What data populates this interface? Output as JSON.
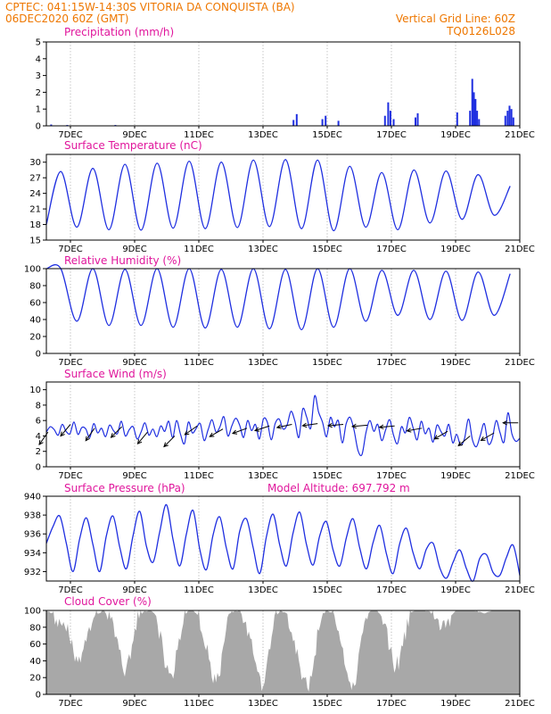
{
  "header": {
    "line1": "CPTEC:   041:15W-14:30S   VITORIA DA CONQUISTA (BA)",
    "line2_left": "06DEC2020 60Z (GMT)",
    "line2_right": "Vertical Grid Line: 60Z",
    "line3_right": "TQ0126L028"
  },
  "colors": {
    "header": "#ee7700",
    "title": "#e0169c",
    "series": "#1f2fe0",
    "cloud": "#a8a8a8",
    "wind_arrow": "#000000"
  },
  "chart_data": [
    {
      "type": "bar",
      "title": "Precipitation (mm/h)",
      "x_ticks": [
        "7DEC",
        "9DEC",
        "11DEC",
        "13DEC",
        "15DEC",
        "17DEC",
        "19DEC",
        "21DEC"
      ],
      "x_range_days": [
        6.25,
        21.0
      ],
      "ylim": [
        0,
        5
      ],
      "y_ticks": [
        "0",
        "1",
        "2",
        "3",
        "4",
        "5"
      ],
      "events": [
        {
          "day": 6.4,
          "value": 0.08
        },
        {
          "day": 6.9,
          "value": 0.05
        },
        {
          "day": 8.4,
          "value": 0.05
        },
        {
          "day": 13.95,
          "value": 0.35
        },
        {
          "day": 14.05,
          "value": 0.7
        },
        {
          "day": 14.85,
          "value": 0.4
        },
        {
          "day": 14.95,
          "value": 0.6
        },
        {
          "day": 15.35,
          "value": 0.3
        },
        {
          "day": 16.8,
          "value": 0.6
        },
        {
          "day": 16.9,
          "value": 1.4
        },
        {
          "day": 16.97,
          "value": 0.9
        },
        {
          "day": 17.07,
          "value": 0.4
        },
        {
          "day": 17.75,
          "value": 0.5
        },
        {
          "day": 17.82,
          "value": 0.75
        },
        {
          "day": 19.05,
          "value": 0.8
        },
        {
          "day": 19.45,
          "value": 0.9
        },
        {
          "day": 19.52,
          "value": 2.8
        },
        {
          "day": 19.57,
          "value": 2.0
        },
        {
          "day": 19.62,
          "value": 1.6
        },
        {
          "day": 19.67,
          "value": 0.9
        },
        {
          "day": 19.73,
          "value": 0.4
        },
        {
          "day": 20.55,
          "value": 0.6
        },
        {
          "day": 20.62,
          "value": 0.9
        },
        {
          "day": 20.68,
          "value": 1.2
        },
        {
          "day": 20.74,
          "value": 1.0
        },
        {
          "day": 20.8,
          "value": 0.5
        }
      ]
    },
    {
      "type": "line",
      "title": "Surface Temperature (nC)",
      "x_ticks": [
        "7DEC",
        "9DEC",
        "11DEC",
        "13DEC",
        "15DEC",
        "17DEC",
        "19DEC",
        "21DEC"
      ],
      "x_range_days": [
        6.25,
        21.0
      ],
      "ylim": [
        15,
        31.5
      ],
      "y_ticks": [
        "15",
        "18",
        "21",
        "24",
        "27",
        "30"
      ],
      "daily_max": [
        28.2,
        28.8,
        29.6,
        29.8,
        30.2,
        30.0,
        30.4,
        30.5,
        30.4,
        29.2,
        28.0,
        28.5,
        28.3,
        27.6,
        25.4,
        25.5
      ],
      "daily_min": [
        17.5,
        17.0,
        16.9,
        17.3,
        17.2,
        17.4,
        17.6,
        17.2,
        16.8,
        17.5,
        17.0,
        18.3,
        19.0,
        19.8,
        19.2,
        19.5
      ],
      "start_value": 18.0
    },
    {
      "type": "line",
      "title": "Relative Humidity (%)",
      "x_ticks": [
        "7DEC",
        "9DEC",
        "11DEC",
        "13DEC",
        "15DEC",
        "17DEC",
        "19DEC",
        "21DEC"
      ],
      "x_range_days": [
        6.25,
        21.0
      ],
      "ylim": [
        0,
        100
      ],
      "y_ticks": [
        "0",
        "20",
        "40",
        "60",
        "80",
        "100"
      ],
      "daily_max": [
        100,
        100,
        99,
        100,
        100,
        99,
        100,
        99,
        100,
        100,
        98,
        98,
        97,
        96,
        94,
        98
      ],
      "daily_min": [
        38,
        33,
        33,
        31,
        30,
        31,
        29,
        28,
        31,
        38,
        45,
        40,
        39,
        45,
        52,
        55
      ],
      "start_value": 100
    },
    {
      "type": "line",
      "title": "Surface Wind (m/s)",
      "x_ticks": [
        "7DEC",
        "9DEC",
        "11DEC",
        "13DEC",
        "15DEC",
        "17DEC",
        "19DEC",
        "21DEC"
      ],
      "x_range_days": [
        6.25,
        21.0
      ],
      "ylim": [
        0,
        11
      ],
      "y_ticks": [
        "0",
        "2",
        "4",
        "6",
        "8",
        "10"
      ],
      "speed": [
        4.5,
        5.2,
        4.8,
        4.1,
        5.5,
        4.6,
        4.3,
        5.8,
        4.2,
        5.1,
        4.9,
        3.8,
        5.6,
        4.4,
        5.0,
        3.9,
        5.4,
        4.7,
        4.3,
        5.9,
        4.0,
        4.8,
        5.2,
        3.6,
        4.5,
        5.7,
        4.1,
        4.9,
        3.9,
        5.3,
        4.6,
        5.9,
        3.8,
        6.0,
        4.2,
        3.0,
        5.8,
        4.4,
        5.0,
        5.6,
        3.4,
        4.8,
        6.1,
        4.5,
        5.2,
        6.5,
        4.0,
        5.3,
        6.3,
        5.4,
        3.8,
        6.0,
        4.7,
        5.5,
        3.6,
        6.2,
        5.8,
        3.5,
        5.6,
        6.2,
        4.9,
        5.4,
        7.2,
        5.9,
        3.8,
        7.5,
        6.4,
        5.0,
        9.2,
        7.1,
        5.8,
        3.9,
        6.4,
        5.2,
        6.0,
        3.1,
        5.6,
        6.4,
        4.7,
        2.1,
        1.6,
        4.4,
        6.0,
        4.6,
        5.5,
        3.4,
        4.8,
        6.1,
        4.1,
        3.0,
        5.2,
        4.4,
        6.4,
        5.0,
        3.5,
        5.9,
        4.3,
        5.0,
        3.2,
        5.4,
        4.6,
        4.0,
        5.5,
        3.1,
        4.2,
        2.8,
        3.7,
        6.2,
        3.5,
        2.6,
        4.1,
        5.6,
        3.0,
        3.6,
        6.0,
        4.4,
        3.2,
        7.0,
        4.3,
        3.3,
        3.7
      ],
      "arrows": [
        {
          "day": 6.3,
          "speed": 4.5,
          "dir_deg": 35
        },
        {
          "day": 7.0,
          "speed": 5.5,
          "dir_deg": 40
        },
        {
          "day": 7.75,
          "speed": 5.0,
          "dir_deg": 35
        },
        {
          "day": 8.6,
          "speed": 5.2,
          "dir_deg": 45
        },
        {
          "day": 9.4,
          "speed": 4.5,
          "dir_deg": 40
        },
        {
          "day": 10.25,
          "speed": 4.0,
          "dir_deg": 45
        },
        {
          "day": 10.95,
          "speed": 5.3,
          "dir_deg": 55
        },
        {
          "day": 11.75,
          "speed": 4.9,
          "dir_deg": 60
        },
        {
          "day": 12.5,
          "speed": 5.0,
          "dir_deg": 70
        },
        {
          "day": 13.2,
          "speed": 5.3,
          "dir_deg": 72
        },
        {
          "day": 13.9,
          "speed": 5.5,
          "dir_deg": 78
        },
        {
          "day": 14.7,
          "speed": 5.6,
          "dir_deg": 82
        },
        {
          "day": 15.5,
          "speed": 5.5,
          "dir_deg": 85
        },
        {
          "day": 16.25,
          "speed": 5.4,
          "dir_deg": 85
        },
        {
          "day": 17.1,
          "speed": 5.3,
          "dir_deg": 85
        },
        {
          "day": 17.95,
          "speed": 5.0,
          "dir_deg": 80
        },
        {
          "day": 18.75,
          "speed": 4.6,
          "dir_deg": 60
        },
        {
          "day": 19.45,
          "speed": 4.0,
          "dir_deg": 50
        },
        {
          "day": 20.2,
          "speed": 4.4,
          "dir_deg": 60
        },
        {
          "day": 20.95,
          "speed": 5.7,
          "dir_deg": 90
        }
      ]
    },
    {
      "type": "line",
      "title": "Surface Pressure (hPa)",
      "annotation": "Model Altitude: 697.792  m",
      "x_ticks": [
        "7DEC",
        "9DEC",
        "11DEC",
        "13DEC",
        "15DEC",
        "17DEC",
        "19DEC",
        "21DEC"
      ],
      "x_range_days": [
        6.25,
        21.0
      ],
      "ylim": [
        931,
        940
      ],
      "y_ticks": [
        "932",
        "934",
        "936",
        "938",
        "940"
      ],
      "series": [
        935.0,
        936.8,
        937.9,
        935.0,
        932.0,
        935.5,
        937.7,
        934.8,
        932.0,
        935.8,
        937.9,
        934.6,
        932.3,
        935.8,
        938.4,
        934.7,
        933.0,
        936.2,
        939.1,
        935.4,
        932.6,
        936.0,
        938.5,
        934.4,
        932.2,
        935.9,
        937.8,
        934.5,
        932.3,
        936.3,
        937.6,
        934.6,
        931.8,
        935.7,
        938.1,
        934.8,
        932.6,
        936.1,
        938.3,
        934.9,
        932.7,
        935.8,
        937.3,
        934.3,
        932.6,
        935.6,
        937.6,
        934.5,
        932.3,
        935.1,
        936.9,
        933.9,
        931.8,
        935.0,
        936.6,
        934.0,
        932.3,
        934.4,
        935.0,
        932.4,
        931.3,
        933.0,
        934.3,
        932.3,
        931.0,
        933.4,
        933.8,
        931.9,
        931.6,
        933.5,
        934.8,
        931.6
      ]
    },
    {
      "type": "area",
      "title": "Cloud Cover (%)",
      "x_ticks": [
        "7DEC",
        "9DEC",
        "11DEC",
        "13DEC",
        "15DEC",
        "17DEC",
        "19DEC",
        "21DEC"
      ],
      "x_range_days": [
        6.25,
        21.0
      ],
      "ylim": [
        0,
        100
      ],
      "y_ticks": [
        "0",
        "20",
        "40",
        "60",
        "80",
        "100"
      ],
      "series": [
        98,
        95,
        90,
        85,
        72,
        40,
        35,
        70,
        88,
        96,
        98,
        92,
        75,
        42,
        25,
        60,
        90,
        98,
        99,
        95,
        70,
        30,
        20,
        55,
        92,
        99,
        98,
        88,
        60,
        22,
        15,
        52,
        95,
        99,
        98,
        85,
        55,
        18,
        10,
        48,
        92,
        98,
        97,
        80,
        50,
        14,
        8,
        45,
        90,
        98,
        97,
        85,
        48,
        15,
        12,
        50,
        92,
        99,
        99,
        90,
        60,
        35,
        40,
        75,
        96,
        100,
        100,
        98,
        92,
        80,
        82,
        94,
        100,
        100,
        100,
        99,
        97,
        96,
        98,
        100,
        100,
        100,
        100,
        99
      ]
    }
  ]
}
